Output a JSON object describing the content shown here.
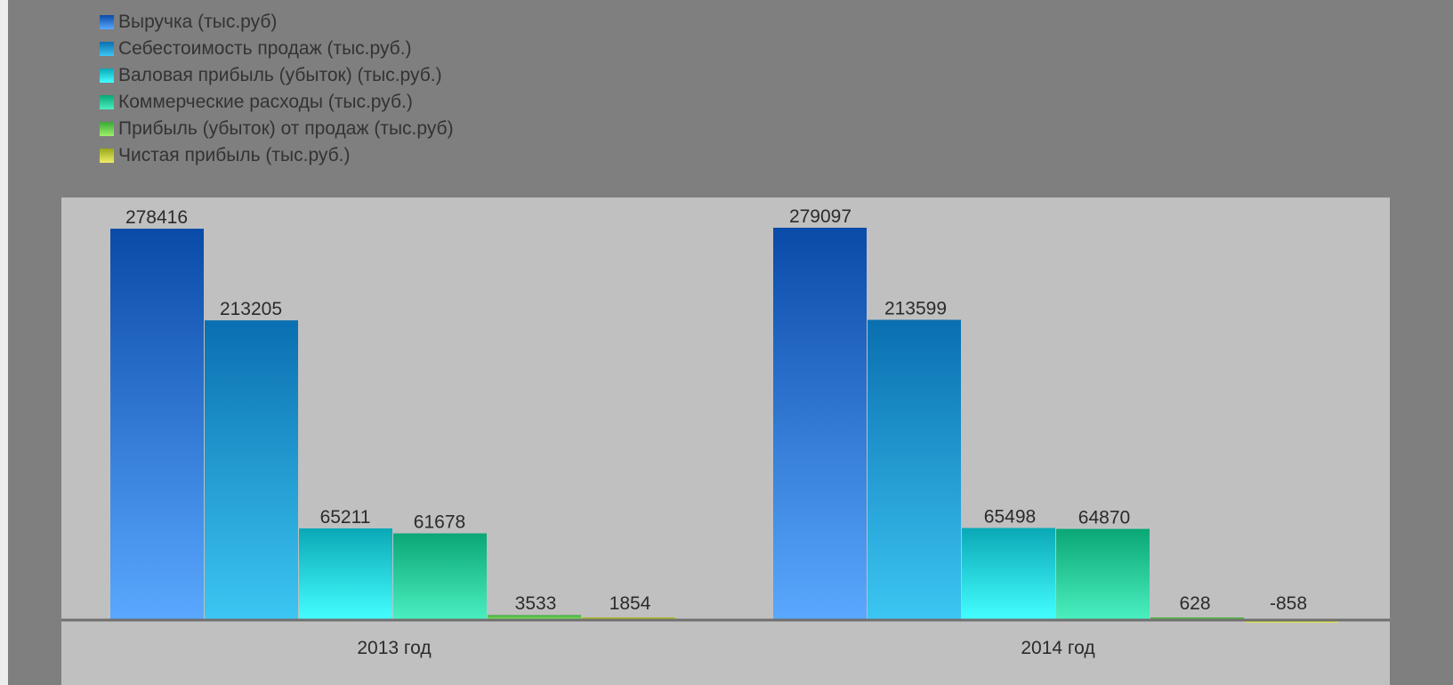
{
  "chart_data": {
    "type": "bar",
    "categories": [
      "2013 год",
      "2014 год"
    ],
    "series": [
      {
        "name": "Выручка (тыс.руб)",
        "values": [
          278416,
          279097
        ],
        "color_top": "#0a4aa8",
        "color_bottom": "#5aa8ff"
      },
      {
        "name": "Себестоимость продаж (тыс.руб.)",
        "values": [
          213205,
          213599
        ],
        "color_top": "#0a6fb0",
        "color_bottom": "#3cc6f2"
      },
      {
        "name": "Валовая прибыль (убыток) (тыс.руб.)",
        "values": [
          65211,
          65498
        ],
        "color_top": "#0aa8b6",
        "color_bottom": "#44ffff"
      },
      {
        "name": "Коммерческие расходы (тыс.руб.)",
        "values": [
          61678,
          64870
        ],
        "color_top": "#0aa676",
        "color_bottom": "#4bf0c0"
      },
      {
        "name": "Прибыль (убыток) от продаж (тыс.руб)",
        "values": [
          3533,
          628
        ],
        "color_top": "#3aa83a",
        "color_bottom": "#9ef06a"
      },
      {
        "name": "Чистая прибыль (тыс.руб.)",
        "values": [
          1854,
          -858
        ],
        "color_top": "#9aa81a",
        "color_bottom": "#eeee66"
      }
    ],
    "data_labels": [
      [
        "278416",
        "213205",
        "65211",
        "61678",
        "3533",
        "1854"
      ],
      [
        "279097",
        "213599",
        "65498",
        "64870",
        "628",
        "-858"
      ]
    ],
    "legend_position": "top-left",
    "grid": false
  }
}
